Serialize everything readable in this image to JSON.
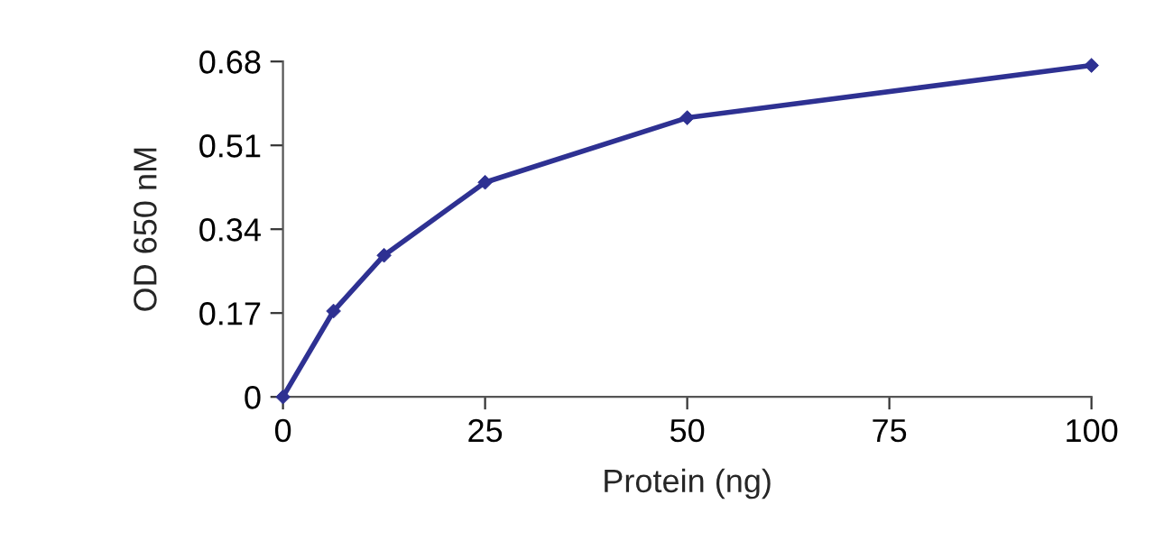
{
  "chart_data": {
    "type": "line",
    "xlabel": "Protein (ng)",
    "ylabel": "OD 650 nM",
    "x": [
      0,
      6.25,
      12.5,
      25,
      50,
      100
    ],
    "series": [
      {
        "color": "#2e3192",
        "values": [
          0,
          0.174,
          0.287,
          0.435,
          0.566,
          0.672
        ]
      }
    ],
    "xlim": [
      0,
      100
    ],
    "xticks": [
      0,
      25,
      50,
      75,
      100
    ],
    "ylim": [
      0,
      0.68
    ],
    "yticks": [
      0,
      0.17,
      0.34,
      0.51,
      0.68
    ],
    "grid": false,
    "legend": false,
    "marker": "diamond",
    "line_style": "solid"
  }
}
